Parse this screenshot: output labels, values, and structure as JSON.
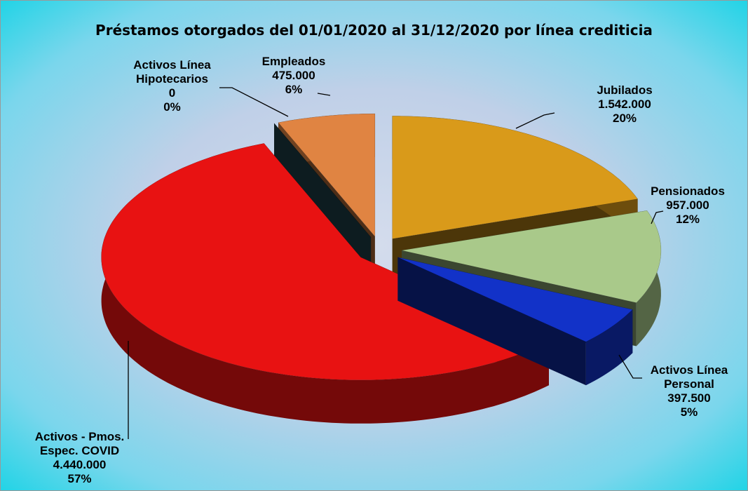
{
  "chart_data": {
    "type": "pie3d",
    "title": "Préstamos otorgados del 01/01/2020 al 31/12/2020 por línea crediticia",
    "categories": [
      "Jubilados",
      "Pensionados",
      "Activos Línea Personal",
      "Activos - Pmos. Espec. COVID",
      "Activos Línea Hipotecarios",
      "Empleados"
    ],
    "values": [
      1542000,
      957000,
      397500,
      4440000,
      0,
      475000
    ],
    "value_labels": [
      "1.542.000",
      "957.000",
      "397.500",
      "4.440.000",
      "0",
      "475.000"
    ],
    "percents": [
      20,
      12,
      5,
      57,
      0,
      6
    ],
    "percent_labels": [
      "20%",
      "12%",
      "5%",
      "57%",
      "0%",
      "6%"
    ],
    "colors": [
      "#d99a1a",
      "#a9c98a",
      "#1232c8",
      "#e81212",
      "#24505c",
      "#e08442"
    ]
  }
}
